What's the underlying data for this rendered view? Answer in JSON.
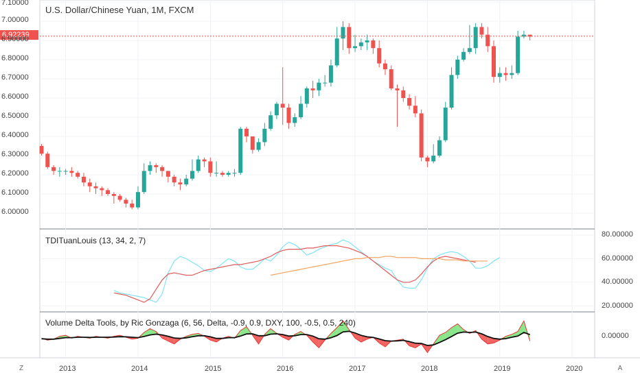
{
  "title": "U.S. Dollar/Chinese Yuan, 1M, FXCM",
  "last_price_label": "6.92239",
  "last_price": 6.92239,
  "price_axis": [
    "7.10000",
    "7.00000",
    "6.90000",
    "6.80000",
    "6.70000",
    "6.60000",
    "6.50000",
    "6.40000",
    "6.30000",
    "6.20000",
    "6.10000",
    "6.00000"
  ],
  "tdi_axis": [
    "80.00000",
    "60.00000",
    "40.00000",
    "20.00000"
  ],
  "vdt_axis": [
    "0.00000"
  ],
  "x_axis": [
    "2013",
    "2014",
    "2015",
    "2016",
    "2017",
    "2018",
    "2019",
    "2020"
  ],
  "corner_left": "Z",
  "corner_right": "A",
  "indicator1_title": "TDITuanLouis (13, 34, 2, 7)",
  "indicator2_title": "Volume Delta Tools, by Ric Gonzaga (6, 56, Delta, -0.9, 0.9, DXY, 100, -0.5, 0.5, 240)",
  "colors": {
    "up": "#26a69a",
    "down": "#ef5350",
    "cyan": "#7fe3f5",
    "red": "#e05a5a",
    "orange": "#f4a460",
    "green_fill": "#7de37d",
    "red_fill": "#ef5350"
  },
  "chart_data": [
    {
      "type": "candlestick",
      "title": "U.S. Dollar/Chinese Yuan, 1M, FXCM",
      "ylim": [
        5.95,
        7.12
      ],
      "x": [
        "2012-09",
        "2012-10",
        "2012-11",
        "2012-12",
        "2013-01",
        "2013-02",
        "2013-03",
        "2013-04",
        "2013-05",
        "2013-06",
        "2013-07",
        "2013-08",
        "2013-09",
        "2013-10",
        "2013-11",
        "2013-12",
        "2014-01",
        "2014-02",
        "2014-03",
        "2014-04",
        "2014-05",
        "2014-06",
        "2014-07",
        "2014-08",
        "2014-09",
        "2014-10",
        "2014-11",
        "2014-12",
        "2015-01",
        "2015-02",
        "2015-03",
        "2015-04",
        "2015-05",
        "2015-06",
        "2015-07",
        "2015-08",
        "2015-09",
        "2015-10",
        "2015-11",
        "2015-12",
        "2016-01",
        "2016-02",
        "2016-03",
        "2016-04",
        "2016-05",
        "2016-06",
        "2016-07",
        "2016-08",
        "2016-09",
        "2016-10",
        "2016-11",
        "2016-12",
        "2017-01",
        "2017-02",
        "2017-03",
        "2017-04",
        "2017-05",
        "2017-06",
        "2017-07",
        "2017-08",
        "2017-09",
        "2017-10",
        "2017-11",
        "2017-12",
        "2018-01",
        "2018-02",
        "2018-03",
        "2018-04",
        "2018-05",
        "2018-06",
        "2018-07",
        "2018-08",
        "2018-09",
        "2018-10",
        "2018-11",
        "2018-12",
        "2019-01",
        "2019-02",
        "2019-03",
        "2019-04",
        "2019-05",
        "2019-06"
      ],
      "open": [
        6.35,
        6.31,
        6.24,
        6.22,
        6.22,
        6.22,
        6.21,
        6.19,
        6.16,
        6.14,
        6.13,
        6.12,
        6.1,
        6.09,
        6.07,
        6.05,
        6.03,
        6.11,
        6.22,
        6.25,
        6.24,
        6.22,
        6.19,
        6.16,
        6.15,
        6.18,
        6.22,
        6.28,
        6.27,
        6.21,
        6.21,
        6.2,
        6.21,
        6.21,
        6.44,
        6.4,
        6.33,
        6.37,
        6.44,
        6.51,
        6.57,
        6.55,
        6.47,
        6.5,
        6.57,
        6.65,
        6.64,
        6.68,
        6.68,
        6.77,
        6.91,
        6.97,
        6.86,
        6.87,
        6.89,
        6.9,
        6.86,
        6.78,
        6.75,
        6.65,
        6.64,
        6.6,
        6.56,
        6.52,
        6.29,
        6.27,
        6.3,
        6.38,
        6.55,
        6.72,
        6.8,
        6.84,
        6.86,
        6.97,
        6.93,
        6.87,
        6.71,
        6.73,
        6.72,
        6.73,
        6.92,
        6.93
      ],
      "close": [
        6.31,
        6.24,
        6.22,
        6.22,
        6.22,
        6.21,
        6.19,
        6.16,
        6.14,
        6.13,
        6.12,
        6.1,
        6.09,
        6.07,
        6.05,
        6.03,
        6.11,
        6.22,
        6.25,
        6.24,
        6.22,
        6.19,
        6.16,
        6.15,
        6.18,
        6.22,
        6.28,
        6.27,
        6.21,
        6.21,
        6.2,
        6.21,
        6.21,
        6.44,
        6.4,
        6.33,
        6.37,
        6.44,
        6.51,
        6.57,
        6.55,
        6.47,
        6.5,
        6.57,
        6.65,
        6.64,
        6.68,
        6.68,
        6.77,
        6.91,
        6.97,
        6.86,
        6.87,
        6.89,
        6.9,
        6.86,
        6.78,
        6.75,
        6.65,
        6.64,
        6.6,
        6.56,
        6.52,
        6.29,
        6.27,
        6.3,
        6.38,
        6.55,
        6.72,
        6.8,
        6.84,
        6.86,
        6.97,
        6.93,
        6.87,
        6.71,
        6.73,
        6.72,
        6.73,
        6.92,
        6.93,
        6.92
      ],
      "high": [
        6.36,
        6.32,
        6.25,
        6.24,
        6.23,
        6.24,
        6.22,
        6.21,
        6.18,
        6.16,
        6.14,
        6.13,
        6.11,
        6.1,
        6.08,
        6.07,
        6.14,
        6.26,
        6.27,
        6.26,
        6.25,
        6.22,
        6.2,
        6.18,
        6.2,
        6.28,
        6.3,
        6.29,
        6.29,
        6.27,
        6.22,
        6.22,
        6.23,
        6.45,
        6.45,
        6.4,
        6.39,
        6.47,
        6.53,
        6.58,
        6.76,
        6.57,
        6.52,
        6.61,
        6.66,
        6.69,
        6.7,
        6.72,
        6.8,
        6.97,
        7.0,
        6.99,
        6.93,
        6.91,
        6.93,
        6.91,
        6.9,
        6.8,
        6.77,
        6.67,
        6.66,
        6.62,
        6.61,
        6.54,
        6.3,
        6.36,
        6.4,
        6.58,
        6.76,
        6.82,
        6.86,
        6.98,
        6.99,
        6.99,
        6.97,
        6.9,
        6.76,
        6.76,
        6.77,
        6.95,
        6.95,
        6.93
      ],
      "low": [
        6.3,
        6.23,
        6.2,
        6.19,
        6.2,
        6.19,
        6.18,
        6.14,
        6.11,
        6.1,
        6.09,
        6.09,
        6.05,
        6.06,
        6.03,
        6.02,
        6.02,
        6.1,
        6.2,
        6.21,
        6.19,
        6.16,
        6.14,
        6.12,
        6.14,
        6.17,
        6.21,
        6.24,
        6.19,
        6.19,
        6.19,
        6.19,
        6.19,
        6.2,
        6.37,
        6.31,
        6.32,
        6.35,
        6.43,
        6.49,
        6.46,
        6.44,
        6.45,
        6.49,
        6.55,
        6.6,
        6.61,
        6.66,
        6.66,
        6.76,
        6.85,
        6.83,
        6.84,
        6.85,
        6.85,
        6.83,
        6.76,
        6.72,
        6.64,
        6.45,
        6.58,
        6.54,
        6.5,
        6.27,
        6.24,
        6.26,
        6.29,
        6.37,
        6.54,
        6.7,
        6.79,
        6.83,
        6.83,
        6.91,
        6.84,
        6.68,
        6.68,
        6.69,
        6.7,
        6.72,
        6.91,
        6.9
      ]
    },
    {
      "type": "line",
      "title": "TDITuanLouis (13, 34, 2, 7)",
      "ylim": [
        18,
        82
      ],
      "series": [
        {
          "x_start": "2013-09",
          "values": [
            33,
            31,
            30,
            29,
            28,
            27,
            25,
            23,
            30,
            48,
            58,
            62,
            60,
            57,
            54,
            50,
            49,
            52,
            56,
            60,
            58,
            53,
            51,
            51,
            55,
            60,
            58,
            63,
            70,
            74,
            72,
            68,
            63,
            65,
            68,
            70,
            72,
            73,
            76,
            74,
            70,
            66,
            62,
            58,
            55,
            52,
            50,
            42,
            36,
            35,
            35,
            42,
            52,
            60,
            63,
            65,
            66,
            65,
            62,
            58,
            52,
            52,
            54,
            58,
            61
          ]
        },
        {
          "x_start": "2013-09",
          "values": [
            31,
            30,
            29,
            27,
            25,
            23,
            26,
            34,
            42,
            47,
            48,
            47,
            46,
            46,
            48,
            50,
            51,
            52,
            53,
            54,
            55,
            55,
            56,
            57,
            58,
            60,
            62,
            65,
            67,
            68,
            68,
            68,
            69,
            69,
            70,
            71,
            71,
            71,
            70,
            69,
            67,
            65,
            62,
            58,
            54,
            50,
            46,
            42,
            40,
            40,
            42,
            47,
            53,
            58,
            61,
            62,
            61,
            60,
            59,
            58,
            57
          ]
        },
        {
          "x_start": "2015-11",
          "values": [
            46,
            47,
            48,
            49,
            50,
            51,
            52,
            53,
            54,
            55,
            56,
            57,
            58,
            59,
            60,
            60,
            61,
            61,
            61,
            62,
            62,
            61,
            61,
            61,
            61,
            60,
            60,
            60,
            60,
            59,
            59,
            59,
            58,
            58,
            58,
            58,
            58
          ]
        }
      ]
    },
    {
      "type": "area",
      "title": "Volume Delta Tools, by Ric Gonzaga (6, 56, Delta, -0.9, 0.9, DXY, 100, -0.5, 0.5, 240)",
      "ylim": [
        -1,
        1
      ],
      "x": [
        "2012-09",
        "2012-10",
        "2012-11",
        "2012-12",
        "2013-01",
        "2013-02",
        "2013-03",
        "2013-04",
        "2013-05",
        "2013-06",
        "2013-07",
        "2013-08",
        "2013-09",
        "2013-10",
        "2013-11",
        "2013-12",
        "2014-01",
        "2014-02",
        "2014-03",
        "2014-04",
        "2014-05",
        "2014-06",
        "2014-07",
        "2014-08",
        "2014-09",
        "2014-10",
        "2014-11",
        "2014-12",
        "2015-01",
        "2015-02",
        "2015-03",
        "2015-04",
        "2015-05",
        "2015-06",
        "2015-07",
        "2015-08",
        "2015-09",
        "2015-10",
        "2015-11",
        "2015-12",
        "2016-01",
        "2016-02",
        "2016-03",
        "2016-04",
        "2016-05",
        "2016-06",
        "2016-07",
        "2016-08",
        "2016-09",
        "2016-10",
        "2016-11",
        "2016-12",
        "2017-01",
        "2017-02",
        "2017-03",
        "2017-04",
        "2017-05",
        "2017-06",
        "2017-07",
        "2017-08",
        "2017-09",
        "2017-10",
        "2017-11",
        "2017-12",
        "2018-01",
        "2018-02",
        "2018-03",
        "2018-04",
        "2018-05",
        "2018-06",
        "2018-07",
        "2018-08",
        "2018-09",
        "2018-10",
        "2018-11",
        "2018-12",
        "2019-01",
        "2019-02",
        "2019-03",
        "2019-04",
        "2019-05",
        "2019-06"
      ],
      "series": [
        {
          "name": "delta",
          "values": [
            -0.05,
            -0.15,
            -0.1,
            0.05,
            0.1,
            -0.05,
            0.05,
            0.0,
            -0.05,
            0.05,
            0.0,
            -0.05,
            0.05,
            0.1,
            0.0,
            -0.1,
            -0.05,
            0.25,
            0.45,
            0.3,
            -0.05,
            -0.2,
            -0.35,
            -0.1,
            0.05,
            0.15,
            0.2,
            0.05,
            -0.15,
            -0.25,
            -0.05,
            0.05,
            -0.05,
            0.35,
            0.55,
            0.1,
            -0.35,
            0.15,
            0.45,
            0.2,
            0.0,
            -0.15,
            0.15,
            0.3,
            0.1,
            -0.25,
            -0.55,
            -0.15,
            0.2,
            0.5,
            0.85,
            0.4,
            -0.05,
            -0.25,
            -0.1,
            0.0,
            -0.3,
            -0.5,
            -0.2,
            -0.15,
            -0.1,
            -0.45,
            -0.55,
            -0.35,
            -0.8,
            -0.35,
            0.1,
            0.25,
            0.5,
            0.7,
            0.4,
            0.2,
            0.35,
            -0.1,
            -0.35,
            -0.3,
            -0.15,
            0.05,
            0.15,
            0.3,
            0.85,
            -0.2
          ]
        },
        {
          "name": "signal",
          "values": [
            -0.08,
            -0.1,
            -0.1,
            -0.06,
            -0.02,
            -0.02,
            0.0,
            0.0,
            -0.01,
            0.0,
            0.0,
            0.0,
            0.01,
            0.03,
            0.02,
            0.0,
            -0.02,
            0.04,
            0.12,
            0.16,
            0.12,
            0.05,
            -0.04,
            -0.06,
            -0.03,
            0.03,
            0.08,
            0.08,
            0.02,
            -0.06,
            -0.06,
            -0.02,
            -0.02,
            0.06,
            0.17,
            0.18,
            0.08,
            0.08,
            0.16,
            0.18,
            0.14,
            0.06,
            0.08,
            0.14,
            0.14,
            0.06,
            -0.08,
            -0.1,
            -0.03,
            0.09,
            0.28,
            0.31,
            0.22,
            0.1,
            0.02,
            -0.01,
            -0.09,
            -0.18,
            -0.2,
            -0.19,
            -0.16,
            -0.23,
            -0.31,
            -0.32,
            -0.43,
            -0.4,
            -0.27,
            -0.13,
            0.04,
            0.21,
            0.27,
            0.25,
            0.27,
            0.18,
            0.04,
            -0.06,
            -0.1,
            -0.07,
            0.0,
            0.06,
            0.25,
            0.14
          ]
        }
      ]
    }
  ]
}
